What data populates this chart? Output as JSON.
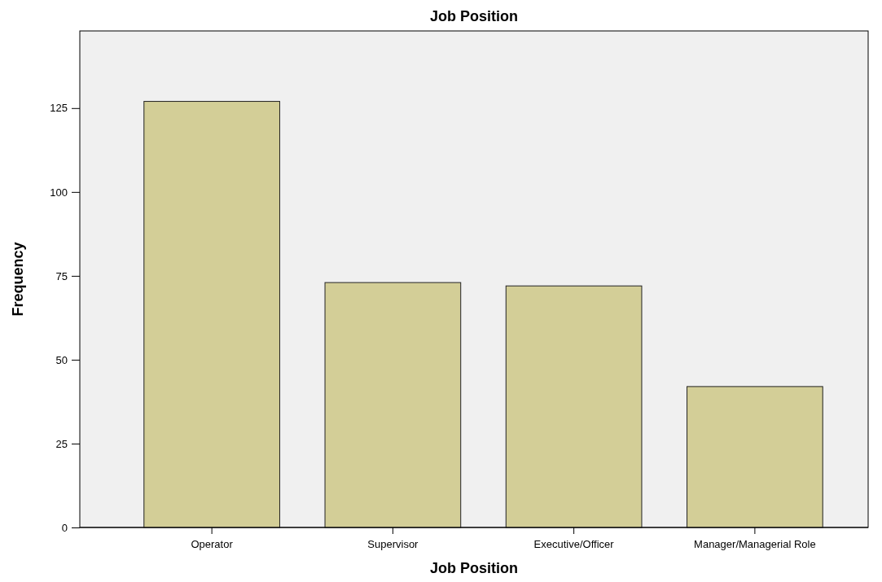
{
  "chart_data": {
    "type": "bar",
    "title": "Job Position",
    "xlabel": "Job Position",
    "ylabel": "Frequency",
    "categories": [
      "Operator",
      "Supervisor",
      "Executive/Officer",
      "Manager/Managerial Role"
    ],
    "values": [
      127,
      73,
      72,
      42
    ],
    "color": "#d3ce97",
    "ylim": [
      0,
      148
    ],
    "yticks": [
      0,
      25,
      50,
      75,
      100,
      125
    ],
    "grid": false
  }
}
